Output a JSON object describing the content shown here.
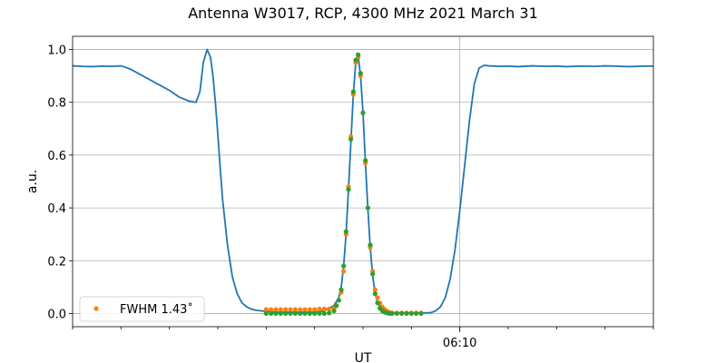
{
  "chart_data": {
    "type": "line",
    "title": "Antenna W3017, RCP, 4300 MHz 2021 March 31",
    "xlabel": "UT",
    "ylabel": "a.u.",
    "ylim": [
      -0.05,
      1.05
    ],
    "xlim_minutes": [
      -8,
      4
    ],
    "x_tick_labels": [
      {
        "label": "06:10",
        "pos": 0
      }
    ],
    "x_minor_ticks": [
      -8,
      -7,
      -6,
      -5,
      -4,
      -3,
      -2,
      -1,
      0,
      1,
      2,
      3,
      4
    ],
    "y_ticks": [
      0.0,
      0.2,
      0.4,
      0.6,
      0.8,
      1.0
    ],
    "y_tick_labels": [
      "0.0",
      "0.2",
      "0.4",
      "0.6",
      "0.8",
      "1.0"
    ],
    "grid": true,
    "legend": {
      "position": "lower-left",
      "entries": [
        {
          "label": "FWHM 1.43$^{\\circ}$",
          "display": "FWHM 1.43˚",
          "color": "#ff7f0e"
        }
      ]
    },
    "colors": {
      "blue": "#1f77b4",
      "orange": "#ff7f0e",
      "green": "#2ca02c",
      "grid": "#b0b0b0"
    },
    "series": [
      {
        "style": "line",
        "color": "#1f77b4",
        "x": [
          -8.0,
          -7.8,
          -7.6,
          -7.4,
          -7.2,
          -7.0,
          -6.9,
          -6.8,
          -6.6,
          -6.4,
          -6.2,
          -6.0,
          -5.8,
          -5.6,
          -5.45,
          -5.37,
          -5.3,
          -5.22,
          -5.15,
          -5.1,
          -5.05,
          -5.0,
          -4.95,
          -4.9,
          -4.8,
          -4.7,
          -4.6,
          -4.5,
          -4.4,
          -4.3,
          -4.2,
          -4.0,
          -3.8,
          -3.6,
          -3.4,
          -3.2,
          -3.0,
          -2.8,
          -2.6,
          -2.5,
          -2.45,
          -2.4,
          -2.35,
          -2.3,
          -2.25,
          -2.2,
          -2.15,
          -2.1,
          -2.05,
          -2.0,
          -1.95,
          -1.9,
          -1.85,
          -1.8,
          -1.75,
          -1.7,
          -1.6,
          -1.5,
          -1.4,
          -1.2,
          -1.0,
          -0.8,
          -0.6,
          -0.5,
          -0.4,
          -0.3,
          -0.2,
          -0.1,
          0.0,
          0.1,
          0.2,
          0.3,
          0.4,
          0.5,
          0.6,
          0.8,
          1.0,
          1.2,
          1.5,
          1.8,
          2.0,
          2.2,
          2.5,
          2.8,
          3.0,
          3.2,
          3.5,
          3.8,
          4.0
        ],
        "y": [
          0.938,
          0.936,
          0.935,
          0.937,
          0.936,
          0.938,
          0.932,
          0.925,
          0.905,
          0.885,
          0.865,
          0.845,
          0.82,
          0.805,
          0.8,
          0.84,
          0.95,
          1.0,
          0.97,
          0.9,
          0.8,
          0.68,
          0.55,
          0.43,
          0.26,
          0.14,
          0.075,
          0.04,
          0.025,
          0.016,
          0.012,
          0.008,
          0.005,
          0.005,
          0.005,
          0.005,
          0.005,
          0.01,
          0.03,
          0.06,
          0.1,
          0.18,
          0.3,
          0.47,
          0.65,
          0.83,
          0.95,
          0.975,
          0.9,
          0.76,
          0.57,
          0.4,
          0.25,
          0.14,
          0.08,
          0.04,
          0.015,
          0.005,
          0.002,
          0.002,
          0.002,
          0.002,
          0.003,
          0.01,
          0.025,
          0.06,
          0.13,
          0.24,
          0.39,
          0.56,
          0.73,
          0.87,
          0.93,
          0.94,
          0.938,
          0.936,
          0.937,
          0.935,
          0.938,
          0.936,
          0.937,
          0.935,
          0.937,
          0.936,
          0.938,
          0.937,
          0.935,
          0.937,
          0.937
        ]
      },
      {
        "style": "points",
        "name": "FWHM 1.43˚",
        "color": "#ff7f0e",
        "x": [
          -4.0,
          -3.9,
          -3.8,
          -3.7,
          -3.6,
          -3.5,
          -3.4,
          -3.3,
          -3.2,
          -3.1,
          -3.0,
          -2.9,
          -2.8,
          -2.7,
          -2.6,
          -2.55,
          -2.5,
          -2.45,
          -2.4,
          -2.35,
          -2.3,
          -2.25,
          -2.2,
          -2.15,
          -2.1,
          -2.05,
          -2.0,
          -1.95,
          -1.9,
          -1.85,
          -1.8,
          -1.75,
          -1.7,
          -1.65,
          -1.6,
          -1.55,
          -1.5,
          -1.45,
          -1.4,
          -1.3,
          -1.2,
          -1.1,
          -1.0,
          -0.9,
          -0.8
        ],
        "y": [
          0.015,
          0.015,
          0.015,
          0.015,
          0.015,
          0.015,
          0.015,
          0.015,
          0.015,
          0.015,
          0.015,
          0.017,
          0.017,
          0.017,
          0.02,
          0.03,
          0.05,
          0.08,
          0.16,
          0.3,
          0.48,
          0.67,
          0.83,
          0.95,
          0.97,
          0.9,
          0.76,
          0.57,
          0.4,
          0.25,
          0.16,
          0.09,
          0.06,
          0.04,
          0.025,
          0.015,
          0.008,
          0.004,
          0.002,
          0.002,
          0.002,
          0.002,
          0.002,
          0.002,
          0.002
        ]
      },
      {
        "style": "points",
        "color": "#2ca02c",
        "x": [
          -4.0,
          -3.9,
          -3.8,
          -3.7,
          -3.6,
          -3.5,
          -3.4,
          -3.3,
          -3.2,
          -3.1,
          -3.0,
          -2.9,
          -2.8,
          -2.7,
          -2.6,
          -2.55,
          -2.5,
          -2.45,
          -2.4,
          -2.35,
          -2.3,
          -2.25,
          -2.2,
          -2.15,
          -2.1,
          -2.05,
          -2.0,
          -1.95,
          -1.9,
          -1.85,
          -1.8,
          -1.75,
          -1.7,
          -1.65,
          -1.6,
          -1.55,
          -1.5,
          -1.45,
          -1.4,
          -1.3,
          -1.2,
          -1.1,
          -1.0,
          -0.9,
          -0.8
        ],
        "y": [
          0.0,
          0.0,
          0.0,
          0.0,
          0.0,
          0.0,
          0.0,
          0.0,
          0.0,
          0.0,
          0.0,
          0.0,
          0.0,
          0.002,
          0.01,
          0.03,
          0.05,
          0.09,
          0.18,
          0.31,
          0.47,
          0.66,
          0.84,
          0.96,
          0.98,
          0.91,
          0.76,
          0.58,
          0.4,
          0.26,
          0.15,
          0.075,
          0.04,
          0.02,
          0.01,
          0.005,
          0.002,
          0.0,
          0.0,
          0.0,
          0.0,
          0.0,
          0.0,
          0.0,
          0.0
        ]
      }
    ]
  }
}
